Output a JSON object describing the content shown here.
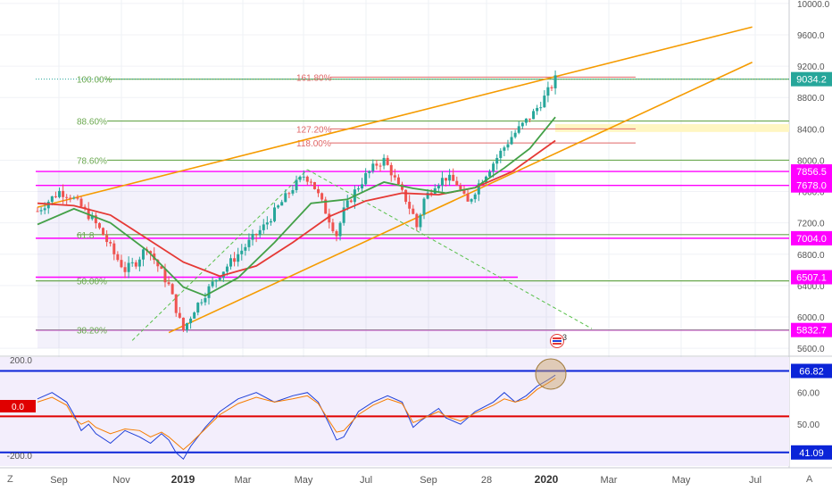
{
  "colors": {
    "candle_up": "#26a69a",
    "candle_down": "#ef5350",
    "ma_fast": "#43a047",
    "ma_slow": "#e53935",
    "trend": "#f59b00",
    "magenta": "#ff00ff",
    "fib_green": "#6aa84f",
    "fib_red": "#e06666",
    "osc_blue": "#1e3fd8",
    "osc_orange": "#f57c00",
    "band_blue": "#0b24d8",
    "osc_bg": "#f3eefc",
    "price_badge": "#26a69a"
  },
  "chart_data": [
    {
      "type": "candlestick",
      "ylim": [
        5400,
        10300
      ],
      "y_ticks": [
        5600,
        6000,
        6400,
        6800,
        7200,
        7600,
        8000,
        8400,
        8800,
        9200,
        9600,
        10000
      ],
      "x_ticks": [
        "Sep",
        "Nov",
        "2019",
        "Mar",
        "May",
        "Jul",
        "Sep",
        "28",
        "2020",
        "Mar",
        "May",
        "Jul"
      ],
      "last_price": "9034.2",
      "price_badges": [
        {
          "label": "7856.5",
          "value": 7856.5,
          "color": "#ff00ff"
        },
        {
          "label": "7678.0",
          "value": 7678.0,
          "color": "#ff00ff"
        },
        {
          "label": "7004.0",
          "value": 7004.0,
          "color": "#ff00ff"
        },
        {
          "label": "6507.1",
          "value": 6507.1,
          "color": "#ff00ff"
        },
        {
          "label": "5832.7",
          "value": 5832.7,
          "color": "#ff00ff"
        }
      ],
      "fib_levels": [
        {
          "label": "100.00%",
          "value": 9034.2
        },
        {
          "label": "88.60%",
          "value": 8500
        },
        {
          "label": "78.60%",
          "value": 8000
        },
        {
          "label": "61.8",
          "value": 7050
        },
        {
          "label": "50.00%",
          "value": 6460
        },
        {
          "label": "38.20%",
          "value": 5832.7
        }
      ],
      "fib_extensions": [
        {
          "label": "161.80%",
          "value": 9060
        },
        {
          "label": "127.20%",
          "value": 8400
        },
        {
          "label": "118.00%",
          "value": 8220
        }
      ],
      "close_path": [
        [
          0,
          7350
        ],
        [
          3,
          7480
        ],
        [
          6,
          7600
        ],
        [
          9,
          7550
        ],
        [
          12,
          7400
        ],
        [
          15,
          7250
        ],
        [
          18,
          7050
        ],
        [
          21,
          6800
        ],
        [
          24,
          6600
        ],
        [
          27,
          6700
        ],
        [
          30,
          6900
        ],
        [
          33,
          6650
        ],
        [
          36,
          6400
        ],
        [
          39,
          5950
        ],
        [
          40,
          5832.7
        ],
        [
          43,
          6100
        ],
        [
          46,
          6300
        ],
        [
          50,
          6550
        ],
        [
          54,
          6750
        ],
        [
          58,
          6950
        ],
        [
          62,
          7150
        ],
        [
          66,
          7400
        ],
        [
          70,
          7650
        ],
        [
          73,
          7800
        ],
        [
          75,
          7750
        ],
        [
          78,
          7450
        ],
        [
          80,
          7250
        ],
        [
          82,
          7050
        ],
        [
          84,
          7350
        ],
        [
          87,
          7600
        ],
        [
          90,
          7800
        ],
        [
          93,
          7950
        ],
        [
          95,
          8000
        ],
        [
          97,
          7850
        ],
        [
          99,
          7650
        ],
        [
          101,
          7500
        ],
        [
          103,
          7300
        ],
        [
          104,
          7150
        ],
        [
          106,
          7500
        ],
        [
          109,
          7700
        ],
        [
          112,
          7780
        ],
        [
          115,
          7700
        ],
        [
          117,
          7520
        ],
        [
          118,
          7450
        ],
        [
          121,
          7700
        ],
        [
          124,
          7900
        ],
        [
          127,
          8100
        ],
        [
          130,
          8300
        ],
        [
          133,
          8450
        ],
        [
          136,
          8600
        ],
        [
          139,
          8800
        ],
        [
          141,
          8950
        ],
        [
          142,
          9034.2
        ]
      ],
      "ma_fast": [
        [
          0,
          7180
        ],
        [
          10,
          7380
        ],
        [
          20,
          7200
        ],
        [
          30,
          6850
        ],
        [
          40,
          6380
        ],
        [
          46,
          6270
        ],
        [
          55,
          6500
        ],
        [
          65,
          6950
        ],
        [
          75,
          7450
        ],
        [
          85,
          7500
        ],
        [
          95,
          7720
        ],
        [
          103,
          7640
        ],
        [
          112,
          7580
        ],
        [
          120,
          7650
        ],
        [
          128,
          7900
        ],
        [
          135,
          8150
        ],
        [
          142,
          8550
        ]
      ],
      "ma_slow": [
        [
          0,
          7450
        ],
        [
          10,
          7420
        ],
        [
          20,
          7300
        ],
        [
          30,
          7000
        ],
        [
          40,
          6700
        ],
        [
          50,
          6520
        ],
        [
          60,
          6650
        ],
        [
          70,
          6950
        ],
        [
          80,
          7280
        ],
        [
          90,
          7480
        ],
        [
          100,
          7580
        ],
        [
          110,
          7560
        ],
        [
          120,
          7650
        ],
        [
          130,
          7850
        ],
        [
          142,
          8250
        ]
      ],
      "trend_upper": [
        [
          0,
          7400
        ],
        [
          196,
          9700
        ]
      ],
      "trend_lower": [
        [
          36,
          5800
        ],
        [
          196,
          9250
        ]
      ],
      "dashed_rise": [
        [
          26,
          5700
        ],
        [
          74,
          7880
        ]
      ],
      "dashed_fall": [
        [
          74,
          7880
        ],
        [
          152,
          5850
        ]
      ]
    },
    {
      "type": "line",
      "y_ticks": [
        "50.00",
        "60.00"
      ],
      "left_ticks": [
        "200.0",
        "0.0",
        "-200.0"
      ],
      "bands": [
        {
          "label": "66.82",
          "value": 66.82
        },
        {
          "label": "41.09",
          "value": 41.09
        }
      ],
      "center_value": 52.5,
      "ylim": [
        38.5,
        69.5
      ],
      "series": [
        {
          "points": [
            [
              0,
              58
            ],
            [
              4,
              60
            ],
            [
              8,
              57
            ],
            [
              10,
              53
            ],
            [
              12,
              48
            ],
            [
              14,
              50
            ],
            [
              16,
              47
            ],
            [
              20,
              44
            ],
            [
              24,
              48
            ],
            [
              28,
              46
            ],
            [
              31,
              44
            ],
            [
              34,
              47
            ],
            [
              36,
              45
            ],
            [
              38,
              41
            ],
            [
              40,
              39
            ],
            [
              42,
              43
            ],
            [
              46,
              49
            ],
            [
              50,
              54
            ],
            [
              55,
              58
            ],
            [
              60,
              60
            ],
            [
              65,
              57
            ],
            [
              70,
              59
            ],
            [
              74,
              60
            ],
            [
              77,
              57
            ],
            [
              80,
              50
            ],
            [
              82,
              45
            ],
            [
              84,
              46
            ],
            [
              88,
              54
            ],
            [
              92,
              57
            ],
            [
              96,
              59
            ],
            [
              100,
              57
            ],
            [
              103,
              49
            ],
            [
              105,
              51
            ],
            [
              110,
              55
            ],
            [
              112,
              52
            ],
            [
              116,
              50
            ],
            [
              120,
              54
            ],
            [
              125,
              57
            ],
            [
              128,
              60
            ],
            [
              131,
              57
            ],
            [
              134,
              59
            ],
            [
              137,
              62
            ],
            [
              140,
              64
            ],
            [
              142,
              65.5
            ]
          ]
        },
        {
          "points": [
            [
              0,
              57
            ],
            [
              4,
              58.5
            ],
            [
              8,
              56
            ],
            [
              10,
              52
            ],
            [
              12,
              50
            ],
            [
              14,
              51
            ],
            [
              16,
              49
            ],
            [
              20,
              47
            ],
            [
              24,
              48.5
            ],
            [
              28,
              48
            ],
            [
              31,
              46
            ],
            [
              34,
              47.5
            ],
            [
              36,
              46
            ],
            [
              38,
              44
            ],
            [
              40,
              42
            ],
            [
              42,
              44
            ],
            [
              46,
              48.5
            ],
            [
              50,
              53
            ],
            [
              55,
              56.5
            ],
            [
              60,
              58.5
            ],
            [
              65,
              57
            ],
            [
              70,
              58
            ],
            [
              74,
              59
            ],
            [
              77,
              56.5
            ],
            [
              80,
              51
            ],
            [
              82,
              47.5
            ],
            [
              84,
              48
            ],
            [
              88,
              53
            ],
            [
              92,
              56
            ],
            [
              96,
              58
            ],
            [
              100,
              56.5
            ],
            [
              103,
              50.5
            ],
            [
              105,
              51.5
            ],
            [
              110,
              54
            ],
            [
              112,
              52.5
            ],
            [
              116,
              51
            ],
            [
              120,
              53.5
            ],
            [
              125,
              56
            ],
            [
              128,
              58
            ],
            [
              131,
              57
            ],
            [
              134,
              58
            ],
            [
              137,
              61
            ],
            [
              140,
              63
            ],
            [
              142,
              64.5
            ]
          ]
        }
      ]
    }
  ],
  "toolbar": {
    "scale_label": "Z",
    "auto_label": "A",
    "event_count": "3"
  }
}
